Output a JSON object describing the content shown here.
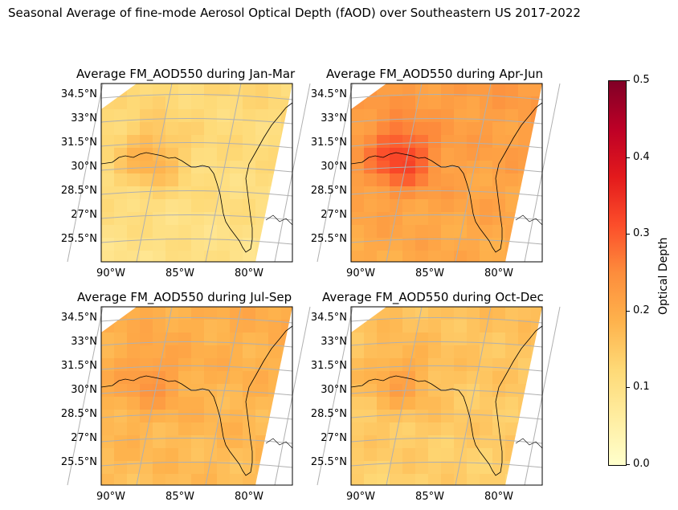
{
  "figure": {
    "title": "Seasonal Average of fine-mode Aerosol Optical Depth (fAOD) over Southeastern US 2017-2022"
  },
  "panels": [
    {
      "title": "Average FM_AOD550 during Jan-Mar",
      "season": "Jan-Mar",
      "base_level": 0.1,
      "hotspot_level": 0.18
    },
    {
      "title": "Average FM_AOD550 during Apr-Jun",
      "season": "Apr-Jun",
      "base_level": 0.2,
      "hotspot_level": 0.32
    },
    {
      "title": "Average FM_AOD550 during Jul-Sep",
      "season": "Jul-Sep",
      "base_level": 0.17,
      "hotspot_level": 0.22
    },
    {
      "title": "Average FM_AOD550 during Oct-Dec",
      "season": "Oct-Dec",
      "base_level": 0.14,
      "hotspot_level": 0.2
    }
  ],
  "axes": {
    "lat_ticks": [
      "34.5°N",
      "33°N",
      "31.5°N",
      "30°N",
      "28.5°N",
      "27°N",
      "25.5°N"
    ],
    "lon_ticks": [
      "90°W",
      "85°W",
      "80°W"
    ]
  },
  "colorbar": {
    "label": "Optical Depth",
    "min": 0.0,
    "max": 0.5,
    "ticks": [
      "0.0",
      "0.1",
      "0.2",
      "0.3",
      "0.4",
      "0.5"
    ],
    "colormap": [
      "#ffffcc",
      "#ffeda0",
      "#fed976",
      "#feb24c",
      "#fd8d3c",
      "#fc4e2a",
      "#e31a1c",
      "#bd0026",
      "#800026"
    ]
  }
}
